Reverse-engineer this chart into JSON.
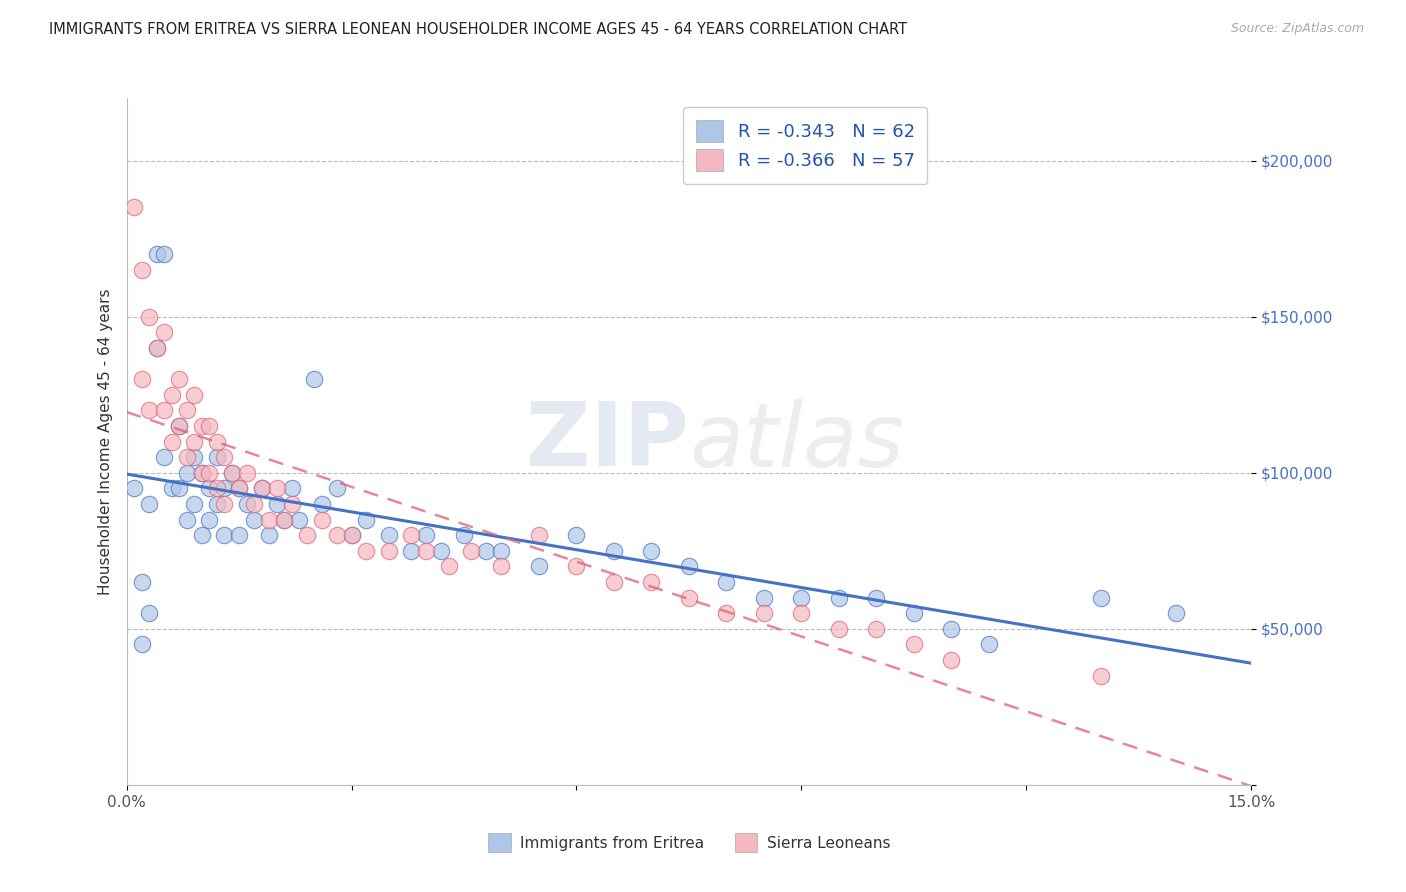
{
  "title": "IMMIGRANTS FROM ERITREA VS SIERRA LEONEAN HOUSEHOLDER INCOME AGES 45 - 64 YEARS CORRELATION CHART",
  "source": "Source: ZipAtlas.com",
  "ylabel": "Householder Income Ages 45 - 64 years",
  "xlim": [
    0.0,
    0.15
  ],
  "ylim": [
    0,
    220000
  ],
  "xticks": [
    0.0,
    0.03,
    0.06,
    0.09,
    0.12,
    0.15
  ],
  "xticklabels": [
    "0.0%",
    "",
    "",
    "",
    "",
    "15.0%"
  ],
  "yticks": [
    0,
    50000,
    100000,
    150000,
    200000
  ],
  "yticklabels": [
    "",
    "$50,000",
    "$100,000",
    "$150,000",
    "$200,000"
  ],
  "legend1_label": "R = -0.343   N = 62",
  "legend2_label": "R = -0.366   N = 57",
  "legend1_color": "#aec6e8",
  "legend2_color": "#f4b8c1",
  "line1_color": "#4472c4",
  "line2_color": "#e06070",
  "watermark_zip": "ZIP",
  "watermark_atlas": "atlas",
  "scatter_blue": {
    "x": [
      0.001,
      0.002,
      0.003,
      0.003,
      0.004,
      0.004,
      0.005,
      0.005,
      0.006,
      0.007,
      0.007,
      0.008,
      0.008,
      0.009,
      0.009,
      0.01,
      0.01,
      0.011,
      0.011,
      0.012,
      0.012,
      0.013,
      0.013,
      0.014,
      0.015,
      0.015,
      0.016,
      0.017,
      0.018,
      0.019,
      0.02,
      0.021,
      0.022,
      0.023,
      0.025,
      0.026,
      0.028,
      0.03,
      0.032,
      0.035,
      0.038,
      0.04,
      0.042,
      0.045,
      0.048,
      0.05,
      0.055,
      0.06,
      0.065,
      0.07,
      0.075,
      0.08,
      0.085,
      0.09,
      0.095,
      0.1,
      0.105,
      0.11,
      0.115,
      0.13,
      0.14,
      0.002
    ],
    "y": [
      95000,
      65000,
      55000,
      90000,
      170000,
      140000,
      170000,
      105000,
      95000,
      115000,
      95000,
      100000,
      85000,
      105000,
      90000,
      100000,
      80000,
      95000,
      85000,
      105000,
      90000,
      95000,
      80000,
      100000,
      95000,
      80000,
      90000,
      85000,
      95000,
      80000,
      90000,
      85000,
      95000,
      85000,
      130000,
      90000,
      95000,
      80000,
      85000,
      80000,
      75000,
      80000,
      75000,
      80000,
      75000,
      75000,
      70000,
      80000,
      75000,
      75000,
      70000,
      65000,
      60000,
      60000,
      60000,
      60000,
      55000,
      50000,
      45000,
      60000,
      55000,
      45000
    ]
  },
  "scatter_pink": {
    "x": [
      0.001,
      0.002,
      0.002,
      0.003,
      0.003,
      0.004,
      0.005,
      0.005,
      0.006,
      0.006,
      0.007,
      0.007,
      0.008,
      0.008,
      0.009,
      0.009,
      0.01,
      0.01,
      0.011,
      0.011,
      0.012,
      0.012,
      0.013,
      0.013,
      0.014,
      0.015,
      0.016,
      0.017,
      0.018,
      0.019,
      0.02,
      0.021,
      0.022,
      0.024,
      0.026,
      0.028,
      0.03,
      0.032,
      0.035,
      0.038,
      0.04,
      0.043,
      0.046,
      0.05,
      0.055,
      0.06,
      0.065,
      0.07,
      0.075,
      0.08,
      0.085,
      0.09,
      0.095,
      0.1,
      0.105,
      0.11,
      0.13
    ],
    "y": [
      185000,
      165000,
      130000,
      150000,
      120000,
      140000,
      145000,
      120000,
      125000,
      110000,
      130000,
      115000,
      120000,
      105000,
      125000,
      110000,
      115000,
      100000,
      115000,
      100000,
      110000,
      95000,
      105000,
      90000,
      100000,
      95000,
      100000,
      90000,
      95000,
      85000,
      95000,
      85000,
      90000,
      80000,
      85000,
      80000,
      80000,
      75000,
      75000,
      80000,
      75000,
      70000,
      75000,
      70000,
      80000,
      70000,
      65000,
      65000,
      60000,
      55000,
      55000,
      55000,
      50000,
      50000,
      45000,
      40000,
      35000
    ]
  },
  "background_color": "#ffffff",
  "grid_color": "#bbbbbb",
  "title_fontsize": 10.5,
  "axis_label_fontsize": 11,
  "tick_fontsize": 11,
  "tick_color_y": "#4472c4",
  "tick_color_x": "#555555",
  "legend_entry_color": "#2255aa"
}
